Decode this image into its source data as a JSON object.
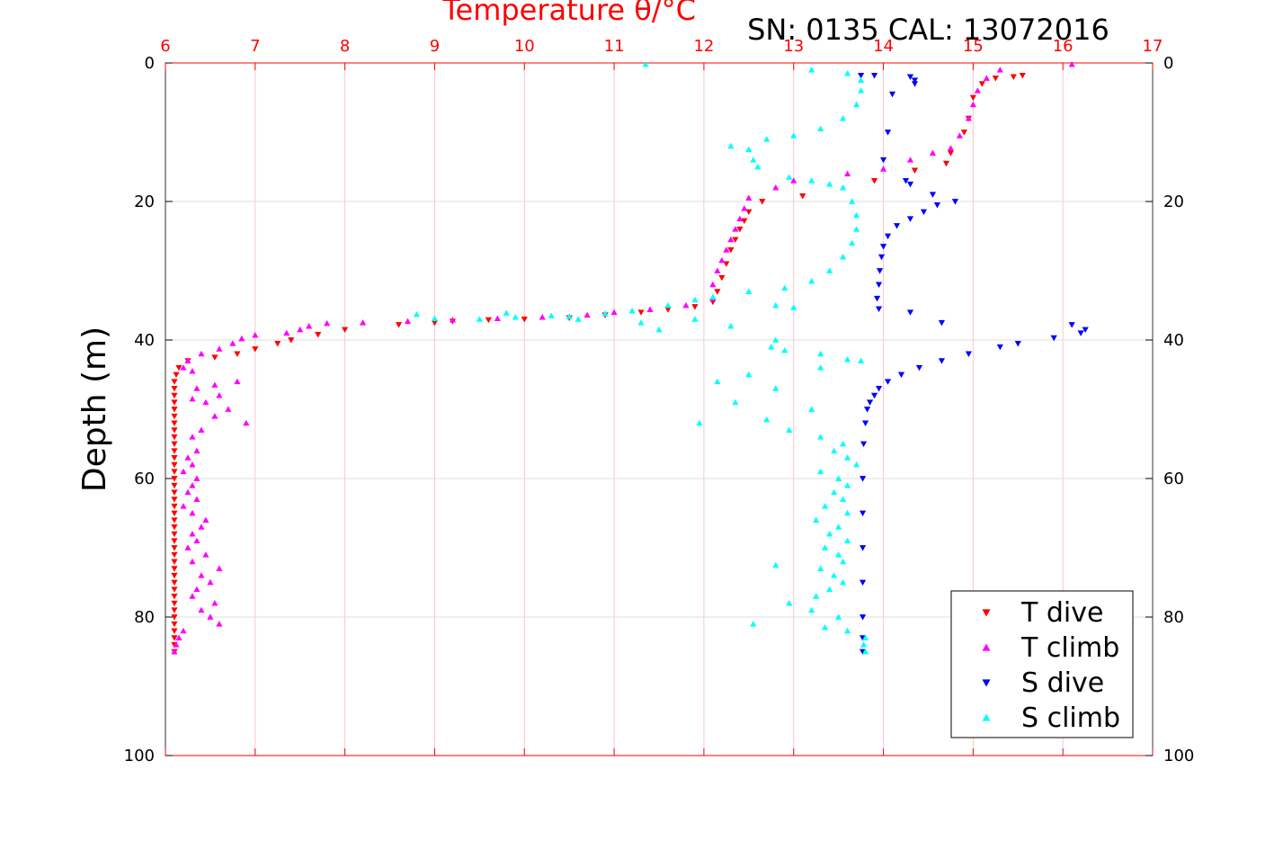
{
  "chart_data": {
    "type": "scatter",
    "title": "Temperature θ/°C",
    "annotation": "SN: 0135  CAL: 13072016",
    "ylabel": "Depth (m)",
    "xlim": [
      6,
      17
    ],
    "ylim": [
      0,
      100
    ],
    "y_inverted": true,
    "x_ticks": [
      "6",
      "7",
      "8",
      "9",
      "10",
      "11",
      "12",
      "13",
      "14",
      "15",
      "16",
      "17"
    ],
    "y_ticks": [
      "0",
      "20",
      "40",
      "60",
      "80",
      "100"
    ],
    "grid": true,
    "legend_position": "bottom-right",
    "colors": {
      "title": "#ff0000",
      "axis_top": "#ff0000",
      "grid_x": "#f5c8d0",
      "grid_y": "#dddddd",
      "text": "#000000"
    },
    "series": [
      {
        "name": "T dive",
        "marker": "triangle-down",
        "color": "#ff0000",
        "points": [
          [
            15.55,
            1.8
          ],
          [
            15.45,
            2
          ],
          [
            15.25,
            2.2
          ],
          [
            15.1,
            3
          ],
          [
            15.0,
            5
          ],
          [
            14.95,
            8
          ],
          [
            14.9,
            10
          ],
          [
            14.75,
            13
          ],
          [
            14.7,
            14.5
          ],
          [
            14.35,
            15.5
          ],
          [
            13.9,
            17
          ],
          [
            13.1,
            19.2
          ],
          [
            12.65,
            20
          ],
          [
            12.5,
            21.5
          ],
          [
            12.45,
            22.8
          ],
          [
            12.4,
            24
          ],
          [
            12.35,
            25.5
          ],
          [
            12.3,
            27
          ],
          [
            12.25,
            29
          ],
          [
            12.2,
            31
          ],
          [
            12.15,
            33
          ],
          [
            12.1,
            34.5
          ],
          [
            11.9,
            35.2
          ],
          [
            11.6,
            35.6
          ],
          [
            11.3,
            36
          ],
          [
            10.9,
            36.4
          ],
          [
            10.5,
            36.8
          ],
          [
            10.0,
            37
          ],
          [
            9.6,
            37.1
          ],
          [
            9.2,
            37.3
          ],
          [
            9.0,
            37.5
          ],
          [
            8.6,
            37.8
          ],
          [
            8.0,
            38.5
          ],
          [
            7.7,
            39.2
          ],
          [
            7.4,
            40
          ],
          [
            7.25,
            40.5
          ],
          [
            7.0,
            41.3
          ],
          [
            6.8,
            42
          ],
          [
            6.55,
            42.5
          ],
          [
            6.25,
            43
          ],
          [
            6.15,
            44
          ],
          [
            6.12,
            45
          ],
          [
            6.1,
            46
          ],
          [
            6.1,
            47
          ],
          [
            6.1,
            48
          ],
          [
            6.1,
            49
          ],
          [
            6.1,
            50
          ],
          [
            6.1,
            51
          ],
          [
            6.1,
            52
          ],
          [
            6.1,
            53
          ],
          [
            6.1,
            54
          ],
          [
            6.1,
            55
          ],
          [
            6.1,
            56
          ],
          [
            6.1,
            57
          ],
          [
            6.1,
            58
          ],
          [
            6.1,
            59
          ],
          [
            6.1,
            60
          ],
          [
            6.1,
            61
          ],
          [
            6.1,
            62
          ],
          [
            6.1,
            63
          ],
          [
            6.1,
            64
          ],
          [
            6.1,
            65
          ],
          [
            6.1,
            66
          ],
          [
            6.1,
            67
          ],
          [
            6.1,
            68
          ],
          [
            6.1,
            69
          ],
          [
            6.1,
            70
          ],
          [
            6.1,
            71
          ],
          [
            6.1,
            72
          ],
          [
            6.1,
            73
          ],
          [
            6.1,
            74
          ],
          [
            6.1,
            75
          ],
          [
            6.1,
            76
          ],
          [
            6.1,
            77
          ],
          [
            6.1,
            78
          ],
          [
            6.1,
            79
          ],
          [
            6.1,
            80
          ],
          [
            6.1,
            81
          ],
          [
            6.1,
            82
          ],
          [
            6.1,
            83
          ],
          [
            6.1,
            84
          ],
          [
            6.1,
            85
          ]
        ]
      },
      {
        "name": "T climb",
        "marker": "triangle-up",
        "color": "#ff00ff",
        "points": [
          [
            16.1,
            0.2
          ],
          [
            15.3,
            1
          ],
          [
            15.15,
            2.2
          ],
          [
            15.05,
            4
          ],
          [
            15.0,
            6
          ],
          [
            14.95,
            8
          ],
          [
            14.85,
            10.5
          ],
          [
            14.75,
            12.3
          ],
          [
            14.55,
            13
          ],
          [
            14.3,
            14
          ],
          [
            14.0,
            15.3
          ],
          [
            13.6,
            16
          ],
          [
            13.0,
            17
          ],
          [
            12.8,
            18
          ],
          [
            12.5,
            19.5
          ],
          [
            12.45,
            21
          ],
          [
            12.4,
            22.5
          ],
          [
            12.35,
            24
          ],
          [
            12.3,
            25.5
          ],
          [
            12.25,
            27
          ],
          [
            12.2,
            28.5
          ],
          [
            12.15,
            30
          ],
          [
            12.1,
            32
          ],
          [
            12.1,
            34
          ],
          [
            11.8,
            35
          ],
          [
            11.4,
            35.6
          ],
          [
            11.0,
            36
          ],
          [
            10.7,
            36.4
          ],
          [
            10.2,
            36.7
          ],
          [
            9.7,
            36.9
          ],
          [
            9.2,
            37.1
          ],
          [
            8.7,
            37.3
          ],
          [
            8.2,
            37.5
          ],
          [
            7.8,
            37.6
          ],
          [
            7.6,
            38
          ],
          [
            7.5,
            38.5
          ],
          [
            7.35,
            39
          ],
          [
            7.0,
            39.3
          ],
          [
            6.85,
            39.8
          ],
          [
            6.75,
            40.5
          ],
          [
            6.6,
            41.3
          ],
          [
            6.4,
            42
          ],
          [
            6.25,
            43
          ],
          [
            6.2,
            44
          ],
          [
            6.3,
            44.5
          ],
          [
            6.8,
            46
          ],
          [
            6.55,
            46.5
          ],
          [
            6.35,
            47
          ],
          [
            6.6,
            48
          ],
          [
            6.3,
            48.5
          ],
          [
            6.45,
            49
          ],
          [
            6.7,
            50
          ],
          [
            6.55,
            51
          ],
          [
            6.9,
            52
          ],
          [
            6.4,
            53
          ],
          [
            6.3,
            54
          ],
          [
            6.35,
            56
          ],
          [
            6.25,
            57
          ],
          [
            6.3,
            58
          ],
          [
            6.2,
            59
          ],
          [
            6.35,
            60
          ],
          [
            6.3,
            61
          ],
          [
            6.25,
            62
          ],
          [
            6.35,
            63
          ],
          [
            6.2,
            64
          ],
          [
            6.3,
            65
          ],
          [
            6.45,
            66
          ],
          [
            6.4,
            67
          ],
          [
            6.3,
            68
          ],
          [
            6.35,
            69
          ],
          [
            6.25,
            70
          ],
          [
            6.45,
            71
          ],
          [
            6.3,
            72
          ],
          [
            6.6,
            73
          ],
          [
            6.4,
            74
          ],
          [
            6.5,
            75
          ],
          [
            6.35,
            76
          ],
          [
            6.3,
            77
          ],
          [
            6.55,
            78
          ],
          [
            6.4,
            79
          ],
          [
            6.5,
            80
          ],
          [
            6.6,
            81
          ],
          [
            6.2,
            82
          ],
          [
            6.15,
            83
          ],
          [
            6.12,
            84
          ],
          [
            6.1,
            85
          ]
        ]
      },
      {
        "name": "S dive",
        "marker": "triangle-down",
        "color": "#0000ff",
        "points": [
          [
            13.75,
            1.8
          ],
          [
            13.9,
            1.8
          ],
          [
            14.3,
            2
          ],
          [
            14.35,
            2.5
          ],
          [
            14.35,
            3
          ],
          [
            14.1,
            4.5
          ],
          [
            14.05,
            10
          ],
          [
            14.0,
            14
          ],
          [
            14.25,
            17
          ],
          [
            14.3,
            17.5
          ],
          [
            14.55,
            19
          ],
          [
            14.8,
            20
          ],
          [
            14.6,
            20.5
          ],
          [
            14.45,
            21.5
          ],
          [
            14.3,
            22.5
          ],
          [
            14.15,
            23.5
          ],
          [
            14.05,
            25
          ],
          [
            14.0,
            26.5
          ],
          [
            13.98,
            28
          ],
          [
            13.96,
            30
          ],
          [
            13.95,
            32
          ],
          [
            13.93,
            34
          ],
          [
            13.95,
            35.5
          ],
          [
            14.3,
            36
          ],
          [
            14.65,
            37.5
          ],
          [
            16.1,
            37.8
          ],
          [
            16.25,
            38.5
          ],
          [
            16.2,
            39
          ],
          [
            15.9,
            39.7
          ],
          [
            15.5,
            40.5
          ],
          [
            15.3,
            41
          ],
          [
            14.95,
            42
          ],
          [
            14.65,
            43
          ],
          [
            14.4,
            44
          ],
          [
            14.2,
            45
          ],
          [
            14.05,
            46
          ],
          [
            13.95,
            47
          ],
          [
            13.9,
            48
          ],
          [
            13.85,
            49
          ],
          [
            13.82,
            50
          ],
          [
            13.8,
            52
          ],
          [
            13.78,
            55
          ],
          [
            13.77,
            60
          ],
          [
            13.77,
            65
          ],
          [
            13.77,
            70
          ],
          [
            13.77,
            75
          ],
          [
            13.77,
            80
          ],
          [
            13.77,
            83
          ],
          [
            13.77,
            85
          ]
        ]
      },
      {
        "name": "S climb",
        "marker": "triangle-up",
        "color": "#00ffff",
        "points": [
          [
            11.35,
            0.2
          ],
          [
            13.2,
            1
          ],
          [
            13.6,
            1.5
          ],
          [
            13.75,
            2.5
          ],
          [
            13.75,
            4
          ],
          [
            13.7,
            6
          ],
          [
            13.55,
            8
          ],
          [
            13.3,
            9.5
          ],
          [
            13.0,
            10.5
          ],
          [
            12.7,
            11
          ],
          [
            12.3,
            12
          ],
          [
            12.5,
            12.5
          ],
          [
            12.55,
            14
          ],
          [
            12.6,
            15
          ],
          [
            12.95,
            16.5
          ],
          [
            13.2,
            17
          ],
          [
            13.4,
            17.5
          ],
          [
            13.55,
            18
          ],
          [
            13.65,
            20
          ],
          [
            13.7,
            22
          ],
          [
            13.7,
            24
          ],
          [
            13.65,
            26
          ],
          [
            13.55,
            28
          ],
          [
            13.4,
            30
          ],
          [
            13.2,
            31.5
          ],
          [
            12.9,
            32.5
          ],
          [
            12.5,
            33
          ],
          [
            12.1,
            33.8
          ],
          [
            11.9,
            34.2
          ],
          [
            11.6,
            35
          ],
          [
            11.2,
            35.8
          ],
          [
            10.9,
            36.2
          ],
          [
            10.5,
            36.6
          ],
          [
            9.9,
            36.7
          ],
          [
            9.5,
            37
          ],
          [
            9.0,
            36.9
          ],
          [
            8.8,
            36.3
          ],
          [
            9.8,
            36.1
          ],
          [
            10.3,
            36.5
          ],
          [
            10.6,
            37
          ],
          [
            11.3,
            37.5
          ],
          [
            11.5,
            38.5
          ],
          [
            11.9,
            37
          ],
          [
            12.3,
            38
          ],
          [
            12.8,
            35
          ],
          [
            13.0,
            35.3
          ],
          [
            12.8,
            40
          ],
          [
            12.75,
            41
          ],
          [
            12.9,
            41.5
          ],
          [
            13.3,
            42
          ],
          [
            13.6,
            42.8
          ],
          [
            13.75,
            43
          ],
          [
            13.3,
            44
          ],
          [
            12.5,
            45
          ],
          [
            12.15,
            46
          ],
          [
            12.8,
            47
          ],
          [
            12.35,
            49
          ],
          [
            13.2,
            50
          ],
          [
            12.7,
            51.5
          ],
          [
            11.95,
            52
          ],
          [
            12.95,
            53
          ],
          [
            13.3,
            54
          ],
          [
            13.55,
            55
          ],
          [
            13.45,
            56
          ],
          [
            13.6,
            57
          ],
          [
            13.7,
            58
          ],
          [
            13.3,
            59
          ],
          [
            13.5,
            60
          ],
          [
            13.6,
            61
          ],
          [
            13.45,
            62
          ],
          [
            13.55,
            63
          ],
          [
            13.35,
            64
          ],
          [
            13.6,
            65
          ],
          [
            13.25,
            66
          ],
          [
            13.5,
            67
          ],
          [
            13.4,
            68
          ],
          [
            13.6,
            69
          ],
          [
            13.35,
            70
          ],
          [
            13.5,
            71
          ],
          [
            13.55,
            72
          ],
          [
            12.8,
            72.5
          ],
          [
            13.3,
            73
          ],
          [
            13.45,
            74
          ],
          [
            13.55,
            75
          ],
          [
            13.4,
            76
          ],
          [
            13.25,
            77
          ],
          [
            12.95,
            78
          ],
          [
            13.2,
            79
          ],
          [
            13.5,
            80
          ],
          [
            12.55,
            81
          ],
          [
            13.35,
            81.5
          ],
          [
            13.6,
            82
          ],
          [
            13.8,
            83
          ],
          [
            13.78,
            84
          ],
          [
            13.8,
            85
          ]
        ]
      }
    ]
  }
}
